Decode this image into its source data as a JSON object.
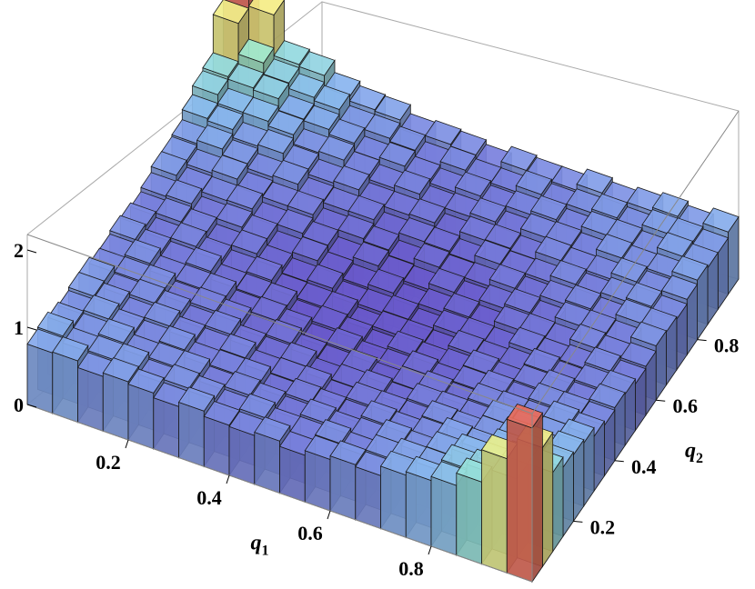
{
  "chart_data": {
    "type": "histogram3d",
    "title": "",
    "xlabel": {
      "text": "q",
      "subscript": "1"
    },
    "ylabel": {
      "text": "q",
      "subscript": "2"
    },
    "zlabel": "",
    "xlim": [
      0,
      1
    ],
    "ylim": [
      0,
      1
    ],
    "zlim": [
      0,
      2.2
    ],
    "x_ticks": [
      "0.2",
      "0.4",
      "0.6",
      "0.8"
    ],
    "y_ticks": [
      "0.2",
      "0.4",
      "0.6",
      "0.8"
    ],
    "z_ticks": [
      "0",
      "1",
      "2"
    ],
    "bins": 20,
    "colormap": [
      "#6a5acd",
      "#7b86e0",
      "#8ab8f0",
      "#98e6d8",
      "#c8f0a0",
      "#f5ee86",
      "#f5c265",
      "#e8685a"
    ],
    "frame": true,
    "grid": false,
    "value_model": "approximate, read from the rendered surface"
  }
}
